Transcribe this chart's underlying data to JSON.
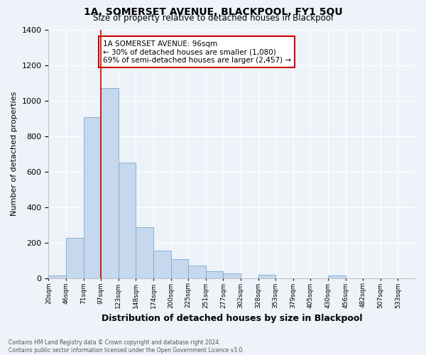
{
  "title": "1A, SOMERSET AVENUE, BLACKPOOL, FY1 5QU",
  "subtitle": "Size of property relative to detached houses in Blackpool",
  "xlabel": "Distribution of detached houses by size in Blackpool",
  "ylabel": "Number of detached properties",
  "bar_color": "#c5d8ed",
  "bar_edge_color": "#7aaad0",
  "background_color": "#eef2f9",
  "grid_color": "#ffffff",
  "bin_labels": [
    "20sqm",
    "46sqm",
    "71sqm",
    "97sqm",
    "123sqm",
    "148sqm",
    "174sqm",
    "200sqm",
    "225sqm",
    "251sqm",
    "277sqm",
    "302sqm",
    "328sqm",
    "353sqm",
    "379sqm",
    "405sqm",
    "430sqm",
    "456sqm",
    "482sqm",
    "507sqm",
    "533sqm"
  ],
  "bin_edges": [
    0,
    1,
    2,
    3,
    4,
    5,
    6,
    7,
    8,
    9,
    10,
    11,
    12,
    13,
    14,
    15,
    16,
    17,
    18,
    19,
    20
  ],
  "counts": [
    15,
    225,
    905,
    1070,
    650,
    285,
    155,
    105,
    70,
    40,
    25,
    0,
    20,
    0,
    0,
    0,
    15,
    0,
    0,
    0
  ],
  "redline_x": 3,
  "annotation_text": "1A SOMERSET AVENUE: 96sqm\n← 30% of detached houses are smaller (1,080)\n69% of semi-detached houses are larger (2,457) →",
  "annotation_box_color": "#ffffff",
  "annotation_box_edge_color": "#cc0000",
  "ylim": [
    0,
    1400
  ],
  "yticks": [
    0,
    200,
    400,
    600,
    800,
    1000,
    1200,
    1400
  ],
  "footnote": "Contains HM Land Registry data © Crown copyright and database right 2024.\nContains public sector information licensed under the Open Government Licence v3.0."
}
